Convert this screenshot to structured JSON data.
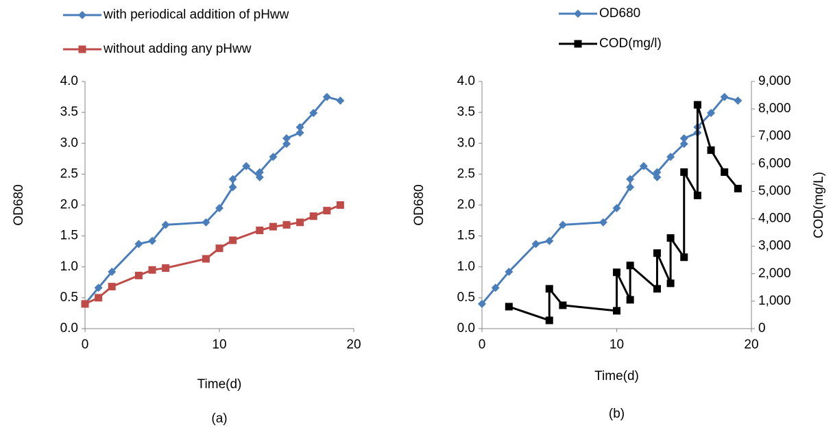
{
  "chart_data": [
    {
      "type": "line",
      "caption": "(a)",
      "x_label": "Time(d)",
      "y_label": "OD680",
      "xlim": [
        0,
        20
      ],
      "xticks": [
        0,
        10,
        20
      ],
      "ylim": [
        0,
        4
      ],
      "yticks": [
        {
          "value": 0,
          "label": "0.0"
        },
        0.5,
        {
          "value": 1,
          "label": "1.0"
        },
        1.5,
        {
          "value": 2,
          "label": "2.0"
        },
        2.5,
        {
          "value": 3,
          "label": "3.0"
        },
        3.5,
        {
          "value": 4,
          "label": "4.0"
        }
      ],
      "legend": "top",
      "series": [
        {
          "name": "with periodical addition of pHww",
          "color": "#4a7ebb",
          "marker": "diamond",
          "x": [
            0,
            1,
            2,
            4,
            5,
            6,
            9,
            10,
            11,
            11,
            12,
            13,
            13,
            14,
            15,
            15,
            16,
            16,
            17,
            18,
            19
          ],
          "values": [
            0.4,
            0.66,
            0.92,
            1.37,
            1.42,
            1.68,
            1.72,
            1.95,
            2.29,
            2.42,
            2.63,
            2.45,
            2.53,
            2.78,
            2.99,
            3.08,
            3.17,
            3.26,
            3.49,
            3.75,
            3.69
          ]
        },
        {
          "name": "without adding any pHww",
          "color": "#be4b48",
          "marker": "square",
          "x": [
            0,
            1,
            2,
            4,
            5,
            6,
            9,
            10,
            11,
            13,
            14,
            15,
            16,
            17,
            18,
            19
          ],
          "values": [
            0.4,
            0.5,
            0.68,
            0.86,
            0.95,
            0.98,
            1.13,
            1.3,
            1.43,
            1.59,
            1.65,
            1.68,
            1.72,
            1.82,
            1.91,
            2.0
          ]
        }
      ]
    },
    {
      "type": "line",
      "caption": "(b)",
      "x_label": "Time(d)",
      "y_label": "OD680",
      "y2_label": "COD(mg/L)",
      "xlim": [
        0,
        20
      ],
      "xticks": [
        0,
        10,
        20
      ],
      "ylim": [
        0,
        4
      ],
      "yticks": [
        {
          "value": 0,
          "label": "0.0"
        },
        0.5,
        {
          "value": 1,
          "label": "1.0"
        },
        1.5,
        {
          "value": 2,
          "label": "2.0"
        },
        2.5,
        {
          "value": 3,
          "label": "3.0"
        },
        3.5,
        {
          "value": 4,
          "label": "4.0"
        }
      ],
      "y2lim": [
        0,
        9000
      ],
      "y2ticks": [
        0,
        {
          "value": 1000,
          "label": "1,000"
        },
        {
          "value": 2000,
          "label": "2,000"
        },
        {
          "value": 3000,
          "label": "3,000"
        },
        {
          "value": 4000,
          "label": "4,000"
        },
        {
          "value": 5000,
          "label": "5,000"
        },
        {
          "value": 6000,
          "label": "6,000"
        },
        {
          "value": 7000,
          "label": "7,000"
        },
        {
          "value": 8000,
          "label": "8,000"
        },
        {
          "value": 9000,
          "label": "9,000"
        }
      ],
      "legend": "top",
      "series": [
        {
          "name": "OD680",
          "color": "#4a7ebb",
          "marker": "diamond",
          "x": [
            0,
            1,
            2,
            4,
            5,
            6,
            9,
            10,
            11,
            11,
            12,
            13,
            13,
            14,
            15,
            15,
            16,
            16,
            17,
            18,
            19
          ],
          "values": [
            0.4,
            0.66,
            0.92,
            1.37,
            1.42,
            1.68,
            1.72,
            1.95,
            2.29,
            2.42,
            2.63,
            2.45,
            2.53,
            2.78,
            2.99,
            3.08,
            3.17,
            3.26,
            3.49,
            3.75,
            3.69
          ]
        },
        {
          "name": "COD(mg/l)",
          "color": "#000000",
          "marker": "square",
          "axis": "y2",
          "x": [
            2,
            5,
            5,
            6,
            10,
            10,
            11,
            11,
            13,
            13,
            14,
            14,
            15,
            15,
            16,
            16,
            17,
            18,
            19
          ],
          "values": [
            800,
            300,
            1450,
            850,
            650,
            2050,
            1050,
            2300,
            1450,
            2750,
            1650,
            3300,
            2600,
            5700,
            4850,
            8150,
            6500,
            5700,
            5100
          ]
        }
      ]
    }
  ]
}
